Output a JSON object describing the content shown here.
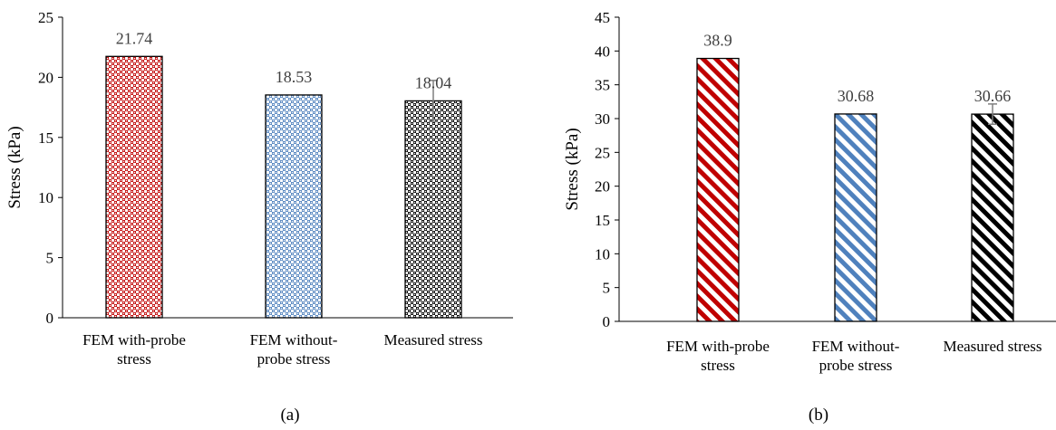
{
  "chart_data": [
    {
      "type": "bar",
      "panel_label": "(a)",
      "categories": [
        [
          "FEM with-probe",
          "stress"
        ],
        [
          "FEM without-",
          "probe stress"
        ],
        [
          "Measured stress"
        ]
      ],
      "values": [
        21.74,
        18.53,
        18.04
      ],
      "data_labels": [
        "21.74",
        "18.53",
        "18.04"
      ],
      "error_plus": [
        0,
        0,
        1.7
      ],
      "error_minus": [
        0,
        0,
        1.7
      ],
      "ylabel": "Stress (kPa)",
      "ylim": [
        0,
        25
      ],
      "yticks": [
        0,
        5,
        10,
        15,
        20,
        25
      ],
      "grid": false,
      "bar_patterns": [
        "dots",
        "dots",
        "dots"
      ],
      "bar_colors": [
        "#c00000",
        "#4f81bd",
        "#000000"
      ]
    },
    {
      "type": "bar",
      "panel_label": "(b)",
      "categories": [
        [
          "FEM with-probe",
          "stress"
        ],
        [
          "FEM without-",
          "probe stress"
        ],
        [
          "Measured stress"
        ]
      ],
      "values": [
        38.9,
        30.68,
        30.66
      ],
      "data_labels": [
        "38.9",
        "30.68",
        "30.66"
      ],
      "error_plus": [
        0,
        0,
        1.5
      ],
      "error_minus": [
        0,
        0,
        1.5
      ],
      "ylabel": "Stress (kPa)",
      "ylim": [
        0,
        45
      ],
      "yticks": [
        0,
        5,
        10,
        15,
        20,
        25,
        30,
        35,
        40,
        45
      ],
      "grid": false,
      "bar_patterns": [
        "stripes",
        "stripes",
        "stripes"
      ],
      "bar_colors": [
        "#c00000",
        "#4f81bd",
        "#000000"
      ]
    }
  ]
}
